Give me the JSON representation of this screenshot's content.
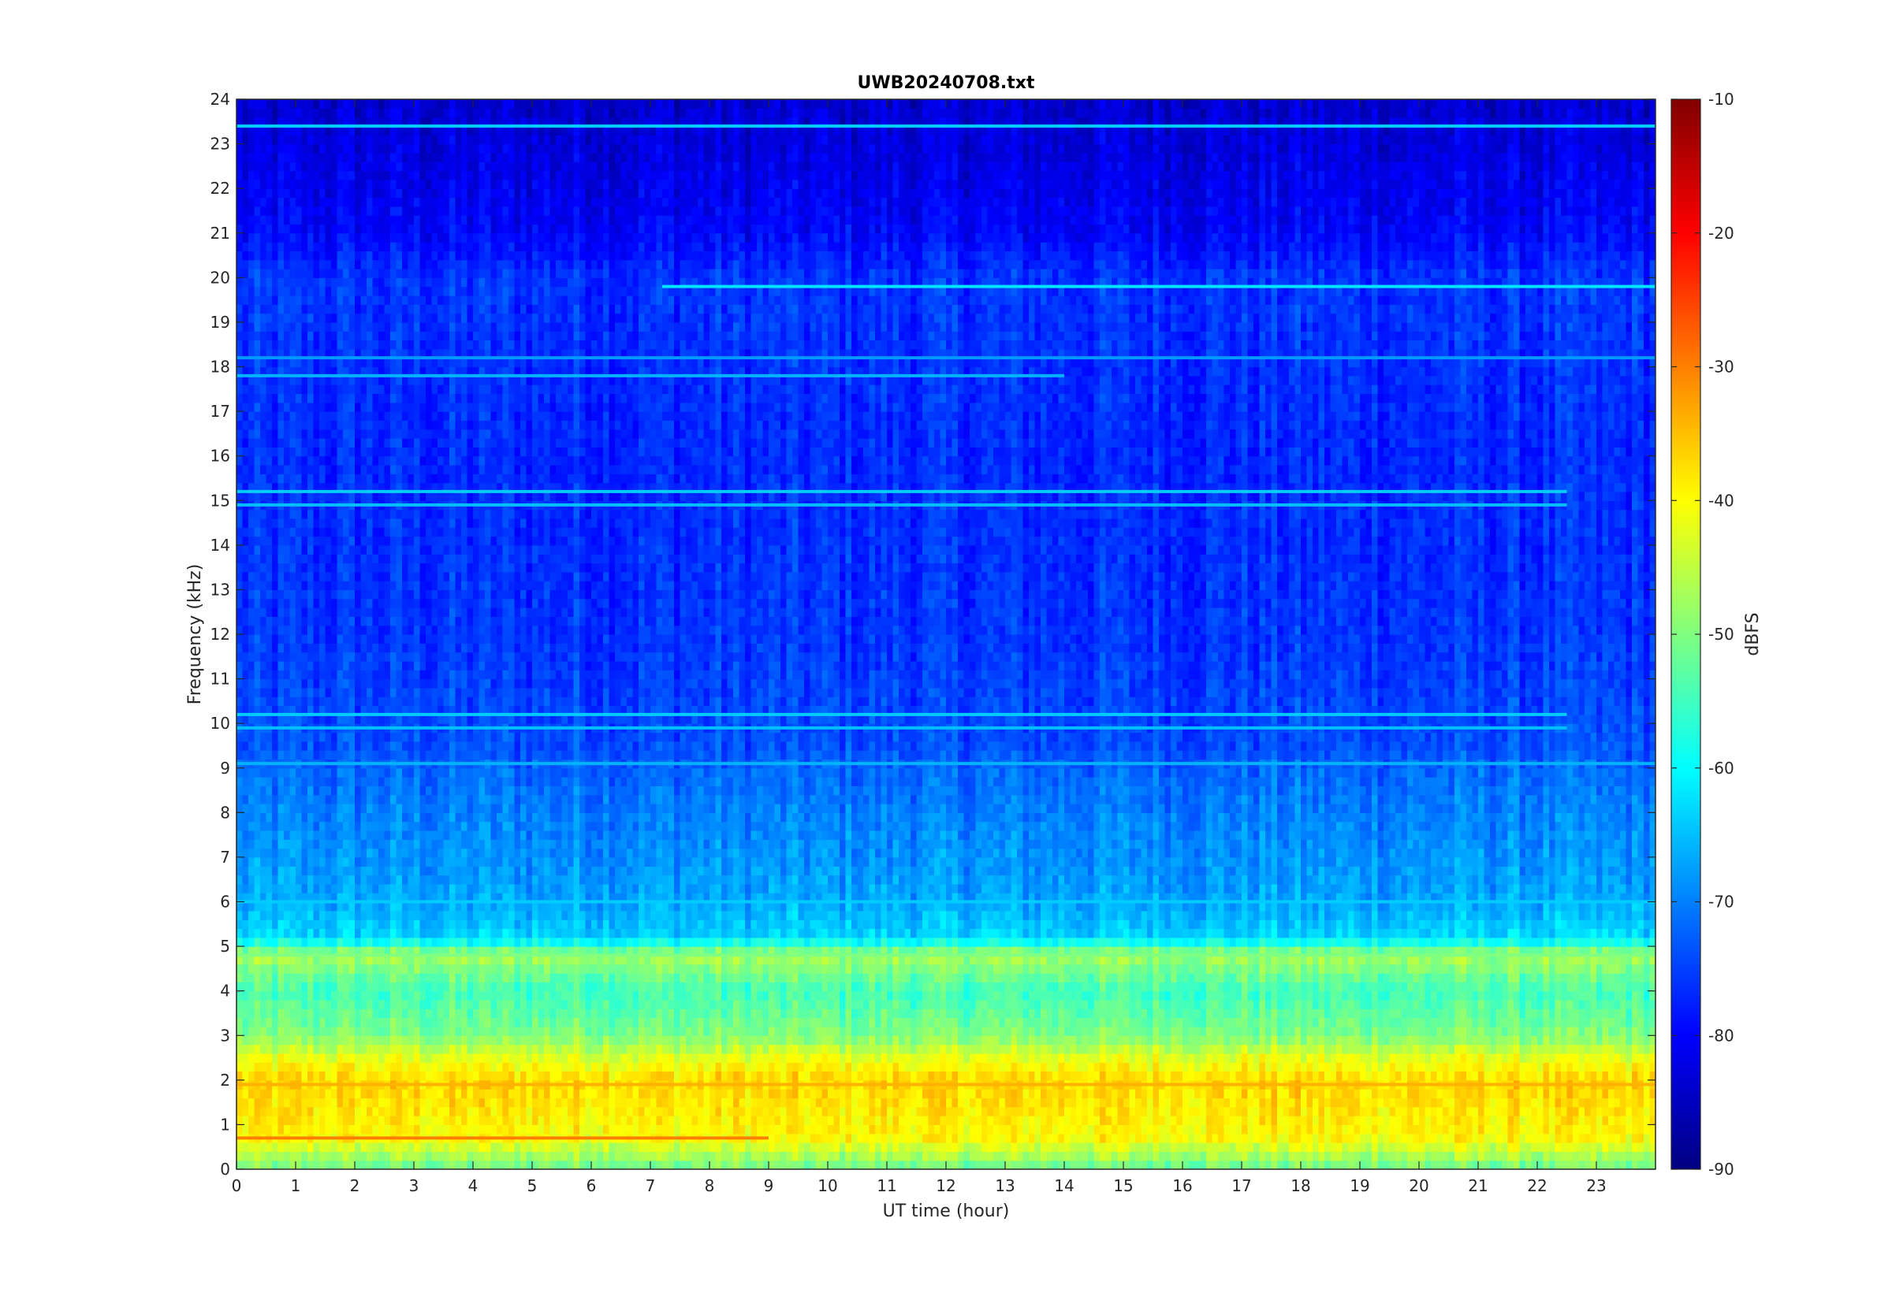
{
  "chart_data": {
    "type": "heatmap",
    "title": "UWB20240708.txt",
    "xlabel": "UT time (hour)",
    "ylabel": "Frequency (kHz)",
    "xlim": [
      0,
      24
    ],
    "ylim": [
      0,
      24
    ],
    "x_ticks": [
      0,
      1,
      2,
      3,
      4,
      5,
      6,
      7,
      8,
      9,
      10,
      11,
      12,
      13,
      14,
      15,
      16,
      17,
      18,
      19,
      20,
      21,
      22,
      23
    ],
    "y_ticks": [
      0,
      1,
      2,
      3,
      4,
      5,
      6,
      7,
      8,
      9,
      10,
      11,
      12,
      13,
      14,
      15,
      16,
      17,
      18,
      19,
      20,
      21,
      22,
      23,
      24
    ],
    "colorbar": {
      "label": "dBFS",
      "colormap": "jet",
      "range": [
        -90,
        -10
      ],
      "ticks": [
        -90,
        -80,
        -70,
        -60,
        -50,
        -40,
        -30,
        -20,
        -10
      ]
    },
    "level_profile": {
      "description_units": "approximate background level (dBFS) by frequency (kHz)",
      "freq_khz": [
        0,
        0.7,
        1.5,
        2.0,
        2.5,
        3.0,
        4.0,
        4.8,
        5.2,
        6.0,
        8.0,
        9.0,
        9.5,
        12.0,
        16.0,
        20.0,
        21.0,
        24.0
      ],
      "level_dbfs": [
        -52,
        -40,
        -38,
        -37,
        -42,
        -50,
        -55,
        -47,
        -63,
        -67,
        -70,
        -72,
        -74,
        -76,
        -77,
        -76,
        -80,
        -84
      ]
    },
    "persistent_lines": [
      {
        "freq_khz": 19.8,
        "start_hour": 7.2,
        "end_hour": 24,
        "level_dbfs": -62
      },
      {
        "freq_khz": 18.2,
        "start_hour": 0,
        "end_hour": 24,
        "level_dbfs": -68
      },
      {
        "freq_khz": 17.8,
        "start_hour": 0,
        "end_hour": 14,
        "level_dbfs": -66
      },
      {
        "freq_khz": 23.4,
        "start_hour": 0,
        "end_hour": 24,
        "level_dbfs": -64
      },
      {
        "freq_khz": 15.2,
        "start_hour": 0,
        "end_hour": 22.5,
        "level_dbfs": -64
      },
      {
        "freq_khz": 14.9,
        "start_hour": 0,
        "end_hour": 22.5,
        "level_dbfs": -65
      },
      {
        "freq_khz": 10.2,
        "start_hour": 0,
        "end_hour": 22.5,
        "level_dbfs": -64
      },
      {
        "freq_khz": 9.9,
        "start_hour": 0,
        "end_hour": 22.5,
        "level_dbfs": -65
      },
      {
        "freq_khz": 9.1,
        "start_hour": 0,
        "end_hour": 24,
        "level_dbfs": -66
      },
      {
        "freq_khz": 6.0,
        "start_hour": 0,
        "end_hour": 24,
        "level_dbfs": -64
      },
      {
        "freq_khz": 4.8,
        "start_hour": 0,
        "end_hour": 24,
        "level_dbfs": -50
      },
      {
        "freq_khz": 1.9,
        "start_hour": 0,
        "end_hour": 24,
        "level_dbfs": -34
      },
      {
        "freq_khz": 0.7,
        "start_hour": 0,
        "end_hour": 9,
        "level_dbfs": -30
      }
    ]
  }
}
